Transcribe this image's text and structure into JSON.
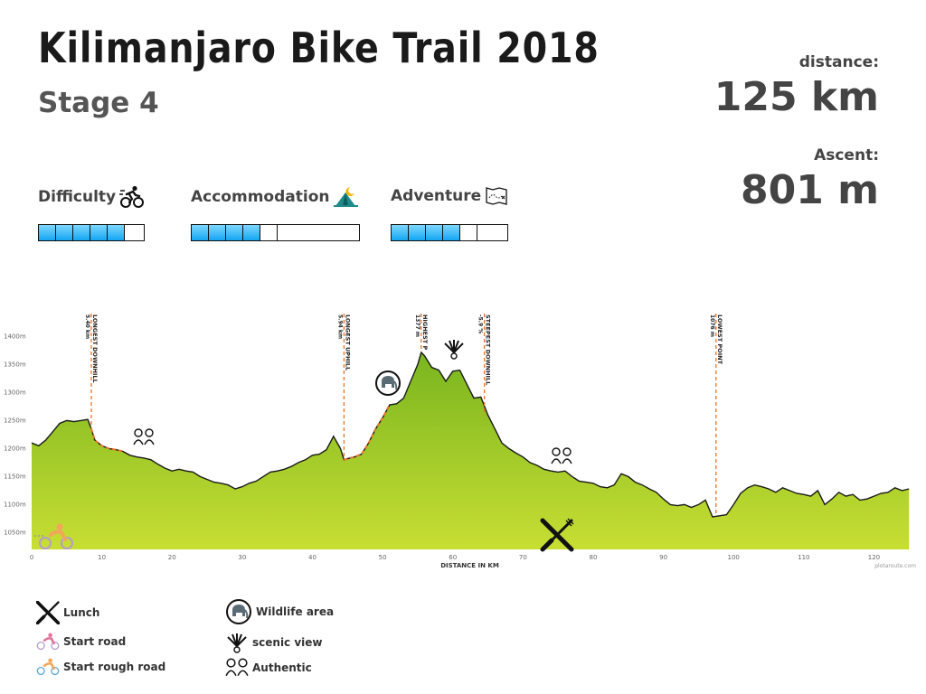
{
  "header": {
    "title": "Kilimanjaro Bike Trail 2018",
    "subtitle": "Stage 4"
  },
  "stats": {
    "distance_label": "distance:",
    "distance_value": "125 km",
    "ascent_label": "Ascent:",
    "ascent_value": "801 m"
  },
  "ratings": [
    {
      "label": "Difficulty",
      "icon": "cyclist-icon",
      "filled": 5,
      "total": 6
    },
    {
      "label": "Accommodation",
      "icon": "tent-icon",
      "filled": 4,
      "total": 6
    },
    {
      "label": "Adventure",
      "icon": "map-icon",
      "filled": 4,
      "total": 6
    }
  ],
  "legend": [
    {
      "label": "Lunch",
      "icon": "cutlery-icon"
    },
    {
      "label": "Start road",
      "icon": "road-bike-icon"
    },
    {
      "label": "Start rough road",
      "icon": "mountain-bike-icon"
    },
    {
      "label": "Wildlife area",
      "icon": "elephant-icon"
    },
    {
      "label": "scenic view",
      "icon": "scenic-view-icon"
    },
    {
      "label": "Authentic",
      "icon": "people-icon"
    }
  ],
  "chart_data": {
    "type": "area",
    "xlabel": "DISTANCE IN KM",
    "ylabel": "",
    "xlim": [
      0,
      126
    ],
    "ylim": [
      1020,
      1420
    ],
    "xticks": [
      0,
      10,
      20,
      30,
      40,
      50,
      60,
      70,
      80,
      90,
      100,
      110,
      120
    ],
    "yticks": [
      1050,
      1100,
      1150,
      1200,
      1250,
      1300,
      1350,
      1400
    ],
    "ytick_suffix": "m",
    "colors": {
      "fill_top": "#79b51f",
      "fill_bottom": "#c8de33",
      "line": "#1a1a1a",
      "marker": "#e8732a"
    },
    "credit": "plotaroute.com",
    "x": [
      0,
      1,
      2,
      3,
      4,
      5,
      6,
      7,
      8,
      8.5,
      9,
      10,
      11,
      12,
      13,
      14,
      15,
      16,
      17,
      18,
      19,
      20,
      21,
      22,
      23,
      24,
      25,
      26,
      27,
      28,
      29,
      30,
      31,
      32,
      33,
      34,
      35,
      36,
      37,
      38,
      39,
      40,
      41,
      42,
      43,
      44,
      44.5,
      45,
      46,
      47,
      48,
      49,
      50,
      51,
      52,
      53,
      54,
      55,
      55.5,
      56,
      57,
      58,
      59,
      60,
      61,
      62,
      63,
      64,
      65,
      66,
      67,
      68,
      69,
      70,
      71,
      72,
      73,
      74,
      75,
      76,
      77,
      78,
      79,
      80,
      81,
      82,
      83,
      84,
      85,
      86,
      87,
      88,
      89,
      90,
      91,
      92,
      93,
      94,
      95,
      96,
      97,
      98,
      99,
      100,
      101,
      102,
      103,
      104,
      105,
      106,
      107,
      108,
      109,
      110,
      111,
      112,
      113,
      114,
      115,
      116,
      117,
      118,
      119,
      120,
      121,
      122,
      123,
      124,
      125
    ],
    "y": [
      1210,
      1205,
      1215,
      1230,
      1245,
      1250,
      1248,
      1250,
      1252,
      1235,
      1215,
      1205,
      1200,
      1198,
      1195,
      1188,
      1185,
      1183,
      1180,
      1172,
      1165,
      1160,
      1163,
      1160,
      1158,
      1150,
      1145,
      1140,
      1138,
      1135,
      1128,
      1132,
      1138,
      1142,
      1150,
      1158,
      1160,
      1163,
      1168,
      1175,
      1180,
      1188,
      1190,
      1198,
      1222,
      1200,
      1180,
      1182,
      1185,
      1190,
      1210,
      1235,
      1255,
      1278,
      1280,
      1290,
      1320,
      1350,
      1372,
      1365,
      1345,
      1340,
      1320,
      1338,
      1340,
      1315,
      1290,
      1292,
      1260,
      1235,
      1210,
      1200,
      1192,
      1185,
      1175,
      1170,
      1163,
      1160,
      1158,
      1160,
      1150,
      1142,
      1140,
      1138,
      1132,
      1130,
      1135,
      1155,
      1150,
      1140,
      1135,
      1128,
      1122,
      1110,
      1100,
      1098,
      1100,
      1095,
      1100,
      1108,
      1078,
      1080,
      1082,
      1100,
      1120,
      1130,
      1135,
      1132,
      1128,
      1122,
      1130,
      1125,
      1120,
      1118,
      1115,
      1125,
      1100,
      1110,
      1122,
      1115,
      1118,
      1108,
      1110,
      1115,
      1120,
      1122,
      1130,
      1125,
      1128
    ],
    "markers": [
      {
        "x": 8.5,
        "line1": "LONGEST DOWNHILL",
        "line2": "5.40 km"
      },
      {
        "x": 44.5,
        "line1": "LONGEST UPHILL",
        "line2": "5.94 km"
      },
      {
        "x": 55.5,
        "line1": "HIGHEST P",
        "line2": "1377 m"
      },
      {
        "x": 64.5,
        "line1": "STEEPEST DOWNHILL",
        "line2": "-5.9 %"
      },
      {
        "x": 97.5,
        "line1": "LOWEST POINT",
        "line2": "1076 m"
      }
    ],
    "highlight_segments": [
      [
        8.5,
        13
      ],
      [
        44.5,
        51
      ]
    ]
  }
}
